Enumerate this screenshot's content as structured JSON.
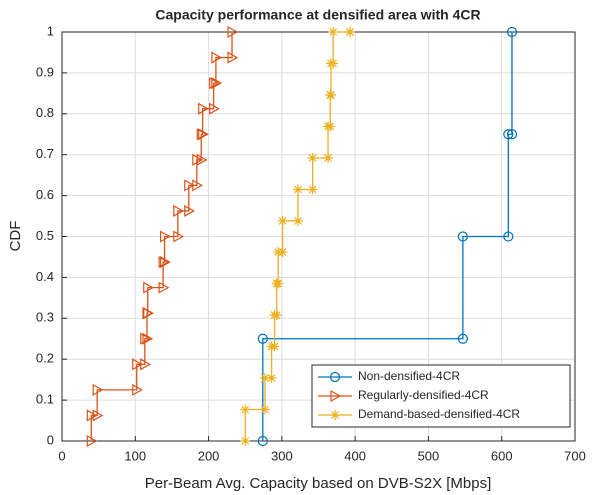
{
  "chart_data": {
    "type": "line",
    "title": "Capacity performance at densified area with 4CR",
    "x_label": "Per-Beam Avg. Capacity based on DVB-S2X [Mbps]",
    "y_label": "CDF",
    "xlim": [
      0,
      700
    ],
    "xticks": [
      0,
      100,
      200,
      300,
      400,
      500,
      600,
      700
    ],
    "ylim": [
      0,
      1
    ],
    "yticks": [
      0,
      0.1,
      0.2,
      0.3,
      0.4,
      0.5,
      0.6,
      0.7,
      0.8,
      0.9,
      1
    ],
    "grid": true,
    "legend_position": "lower-right",
    "series": [
      {
        "name": "Non-densified-4CR",
        "color": "#0072bd",
        "marker": "o",
        "x": [
          274,
          274,
          547,
          547,
          609,
          609,
          614,
          614
        ],
        "values": [
          0,
          0.25,
          0.25,
          0.5,
          0.5,
          0.75,
          0.75,
          1
        ]
      },
      {
        "name": "Regularly-densified-4CR",
        "color": "#d95319",
        "marker": ">",
        "x": [
          40,
          40,
          48,
          48,
          102,
          102,
          113,
          113,
          116,
          116,
          117,
          117,
          138,
          138,
          140,
          140,
          158,
          158,
          173,
          173,
          184,
          184,
          190,
          190,
          192,
          192,
          207,
          207,
          210,
          210,
          232,
          232
        ],
        "values": [
          0,
          0.0625,
          0.0625,
          0.125,
          0.125,
          0.1875,
          0.1875,
          0.25,
          0.25,
          0.3125,
          0.3125,
          0.375,
          0.375,
          0.4375,
          0.4375,
          0.5,
          0.5,
          0.5625,
          0.5625,
          0.625,
          0.625,
          0.6875,
          0.6875,
          0.75,
          0.75,
          0.8125,
          0.8125,
          0.875,
          0.875,
          0.9375,
          0.9375,
          1
        ]
      },
      {
        "name": "Demand-based-densified-4CR",
        "color": "#edb120",
        "marker": "*",
        "x": [
          250,
          250,
          277,
          277,
          286,
          286,
          290,
          290,
          293,
          293,
          295,
          295,
          301,
          301,
          322,
          322,
          342,
          342,
          363,
          363,
          366,
          366,
          367,
          367,
          370,
          370,
          393,
          393
        ],
        "values": [
          0,
          0.077,
          0.077,
          0.154,
          0.154,
          0.231,
          0.231,
          0.308,
          0.308,
          0.385,
          0.385,
          0.462,
          0.462,
          0.538,
          0.538,
          0.615,
          0.615,
          0.692,
          0.692,
          0.769,
          0.769,
          0.846,
          0.846,
          0.923,
          0.923,
          1,
          1,
          1
        ]
      }
    ]
  }
}
